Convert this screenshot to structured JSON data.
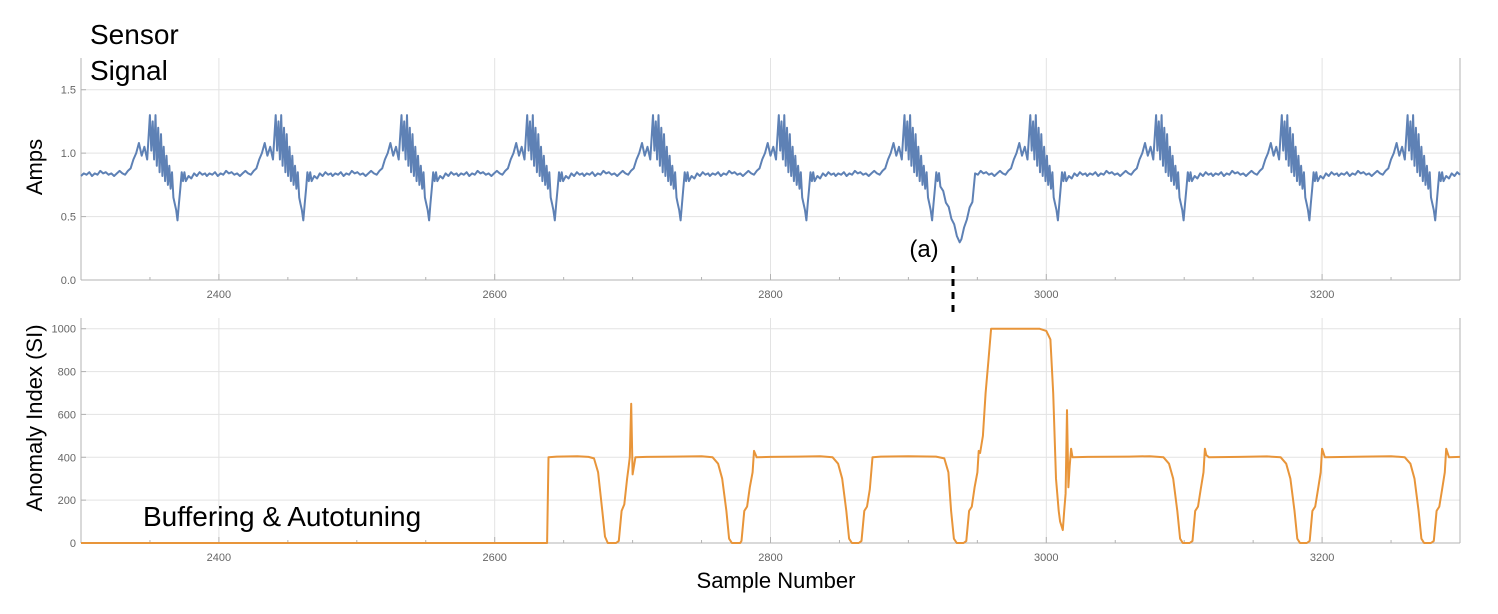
{
  "chart_data": [
    {
      "type": "line",
      "title": "Sensor Signal",
      "title_lines": [
        "Sensor",
        "Signal"
      ],
      "ylabel": "Amps",
      "xlabel": "",
      "xlim": [
        2300,
        3300
      ],
      "ylim": [
        0,
        1.75
      ],
      "x_ticks": [
        "2400",
        "2600",
        "2800",
        "3000",
        "3200"
      ],
      "x_tick_values": [
        2400,
        2600,
        2800,
        3000,
        3200
      ],
      "y_ticks": [
        "0.0",
        "0.5",
        "1.0",
        "1.5"
      ],
      "y_tick_values": [
        0,
        0.5,
        1.0,
        1.5
      ],
      "grid": true,
      "color": "#5E81B5",
      "period": 91.2,
      "anomaly_region": [
        2930,
        2945
      ],
      "annotation": {
        "label": "(a)",
        "x": 2935
      },
      "series": [
        {
          "values_description": "periodic current waveform, baseline ~0.82, oscillatory peaks up to ~1.3, dips to ~0.47",
          "points_per_cycle": [
            [
              0,
              0.82
            ],
            [
              2,
              0.84
            ],
            [
              4,
              0.83
            ],
            [
              6,
              0.85
            ],
            [
              8,
              0.82
            ],
            [
              10,
              0.84
            ],
            [
              12,
              0.83
            ],
            [
              14,
              0.86
            ],
            [
              16,
              0.84
            ],
            [
              18,
              0.85
            ],
            [
              20,
              0.83
            ],
            [
              22,
              0.84
            ],
            [
              24,
              0.82
            ],
            [
              26,
              0.84
            ],
            [
              28,
              0.86
            ],
            [
              30,
              0.84
            ],
            [
              32,
              0.83
            ],
            [
              34,
              0.86
            ],
            [
              36,
              0.88
            ],
            [
              38,
              0.95
            ],
            [
              40,
              1.0
            ],
            [
              42,
              1.08
            ],
            [
              44,
              0.98
            ],
            [
              46,
              1.05
            ],
            [
              48,
              0.95
            ],
            [
              50,
              1.3
            ],
            [
              51,
              1.02
            ],
            [
              52,
              1.25
            ],
            [
              53,
              0.95
            ],
            [
              54,
              1.3
            ],
            [
              55,
              0.9
            ],
            [
              56,
              1.2
            ],
            [
              57,
              0.85
            ],
            [
              58,
              1.15
            ],
            [
              59,
              0.82
            ],
            [
              60,
              1.05
            ],
            [
              61,
              0.78
            ],
            [
              62,
              0.98
            ],
            [
              63,
              0.75
            ],
            [
              64,
              0.9
            ],
            [
              65,
              0.72
            ],
            [
              66,
              0.85
            ],
            [
              67,
              0.65
            ],
            [
              68,
              0.6
            ],
            [
              69,
              0.55
            ],
            [
              70,
              0.47
            ],
            [
              71,
              0.6
            ],
            [
              72,
              0.72
            ],
            [
              73,
              0.85
            ],
            [
              74,
              0.78
            ],
            [
              75,
              0.85
            ],
            [
              76,
              0.78
            ],
            [
              78,
              0.82
            ],
            [
              80,
              0.8
            ],
            [
              82,
              0.84
            ],
            [
              84,
              0.82
            ],
            [
              86,
              0.85
            ],
            [
              88,
              0.83
            ],
            [
              90,
              0.84
            ],
            [
              91.2,
              0.82
            ]
          ]
        }
      ]
    },
    {
      "type": "line",
      "title": "",
      "ylabel": "Anomaly Index (SI)",
      "xlabel": "Sample Number",
      "xlim": [
        2300,
        3300
      ],
      "ylim": [
        0,
        1050
      ],
      "x_ticks": [
        "2400",
        "2600",
        "2800",
        "3000",
        "3200"
      ],
      "x_tick_values": [
        2400,
        2600,
        2800,
        3000,
        3200
      ],
      "y_ticks": [
        "0",
        "200",
        "400",
        "600",
        "800",
        "1000"
      ],
      "y_tick_values": [
        0,
        200,
        400,
        600,
        800,
        1000
      ],
      "grid": true,
      "color": "#E8953A",
      "annotation": {
        "label": "Buffering & Autotuning"
      },
      "series": [
        {
          "points": [
            [
              2300,
              0
            ],
            [
              2638,
              0
            ],
            [
              2639,
              400
            ],
            [
              2645,
              403
            ],
            [
              2660,
              405
            ],
            [
              2668,
              402
            ],
            [
              2672,
              395
            ],
            [
              2675,
              330
            ],
            [
              2678,
              150
            ],
            [
              2680,
              30
            ],
            [
              2682,
              0
            ],
            [
              2688,
              0
            ],
            [
              2690,
              10
            ],
            [
              2692,
              150
            ],
            [
              2694,
              180
            ],
            [
              2696,
              300
            ],
            [
              2697,
              350
            ],
            [
              2698,
              400
            ],
            [
              2699,
              650
            ],
            [
              2700,
              320
            ],
            [
              2701,
              360
            ],
            [
              2702,
              400
            ],
            [
              2710,
              402
            ],
            [
              2730,
              403
            ],
            [
              2750,
              405
            ],
            [
              2758,
              400
            ],
            [
              2762,
              370
            ],
            [
              2765,
              300
            ],
            [
              2768,
              150
            ],
            [
              2770,
              20
            ],
            [
              2772,
              0
            ],
            [
              2778,
              0
            ],
            [
              2779,
              10
            ],
            [
              2781,
              150
            ],
            [
              2783,
              170
            ],
            [
              2785,
              260
            ],
            [
              2787,
              330
            ],
            [
              2788,
              430
            ],
            [
              2790,
              400
            ],
            [
              2800,
              402
            ],
            [
              2820,
              403
            ],
            [
              2836,
              405
            ],
            [
              2845,
              400
            ],
            [
              2849,
              370
            ],
            [
              2852,
              300
            ],
            [
              2855,
              150
            ],
            [
              2857,
              20
            ],
            [
              2859,
              0
            ],
            [
              2864,
              0
            ],
            [
              2866,
              10
            ],
            [
              2868,
              150
            ],
            [
              2870,
              170
            ],
            [
              2872,
              250
            ],
            [
              2874,
              400
            ],
            [
              2880,
              403
            ],
            [
              2900,
              405
            ],
            [
              2920,
              403
            ],
            [
              2926,
              395
            ],
            [
              2929,
              330
            ],
            [
              2931,
              150
            ],
            [
              2933,
              20
            ],
            [
              2935,
              0
            ],
            [
              2940,
              0
            ],
            [
              2942,
              10
            ],
            [
              2944,
              150
            ],
            [
              2946,
              170
            ],
            [
              2948,
              260
            ],
            [
              2950,
              330
            ],
            [
              2951,
              430
            ],
            [
              2952,
              420
            ],
            [
              2954,
              500
            ],
            [
              2956,
              700
            ],
            [
              2958,
              850
            ],
            [
              2960,
              1000
            ],
            [
              2970,
              1000
            ],
            [
              2985,
              1000
            ],
            [
              2995,
              1000
            ],
            [
              3000,
              990
            ],
            [
              3003,
              950
            ],
            [
              3005,
              700
            ],
            [
              3007,
              300
            ],
            [
              3009,
              150
            ],
            [
              3010,
              100
            ],
            [
              3012,
              60
            ],
            [
              3013,
              150
            ],
            [
              3014,
              230
            ],
            [
              3015,
              620
            ],
            [
              3016,
              260
            ],
            [
              3017,
              360
            ],
            [
              3018,
              440
            ],
            [
              3019,
              400
            ],
            [
              3030,
              402
            ],
            [
              3060,
              403
            ],
            [
              3075,
              405
            ],
            [
              3085,
              400
            ],
            [
              3089,
              370
            ],
            [
              3092,
              300
            ],
            [
              3095,
              150
            ],
            [
              3097,
              20
            ],
            [
              3099,
              0
            ],
            [
              3104,
              0
            ],
            [
              3106,
              10
            ],
            [
              3108,
              150
            ],
            [
              3110,
              170
            ],
            [
              3112,
              250
            ],
            [
              3114,
              330
            ],
            [
              3115,
              440
            ],
            [
              3116,
              410
            ],
            [
              3118,
              400
            ],
            [
              3140,
              402
            ],
            [
              3160,
              404
            ],
            [
              3170,
              400
            ],
            [
              3174,
              370
            ],
            [
              3177,
              300
            ],
            [
              3180,
              150
            ],
            [
              3182,
              20
            ],
            [
              3184,
              0
            ],
            [
              3189,
              0
            ],
            [
              3191,
              10
            ],
            [
              3193,
              150
            ],
            [
              3195,
              170
            ],
            [
              3197,
              250
            ],
            [
              3199,
              330
            ],
            [
              3200,
              440
            ],
            [
              3202,
              400
            ],
            [
              3230,
              403
            ],
            [
              3250,
              405
            ],
            [
              3260,
              400
            ],
            [
              3264,
              370
            ],
            [
              3267,
              300
            ],
            [
              3270,
              150
            ],
            [
              3272,
              20
            ],
            [
              3274,
              0
            ],
            [
              3279,
              0
            ],
            [
              3281,
              10
            ],
            [
              3283,
              150
            ],
            [
              3285,
              170
            ],
            [
              3287,
              250
            ],
            [
              3289,
              330
            ],
            [
              3290,
              440
            ],
            [
              3292,
              400
            ],
            [
              3300,
              402
            ]
          ]
        }
      ]
    }
  ]
}
